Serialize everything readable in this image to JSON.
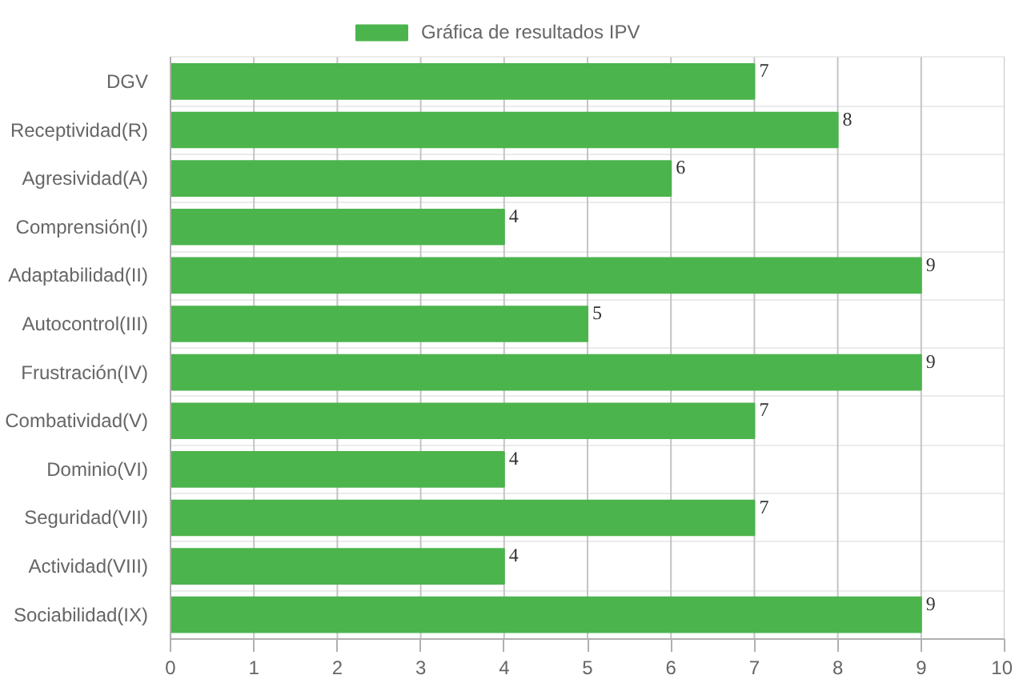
{
  "chart_data": {
    "type": "bar",
    "orientation": "horizontal",
    "categories": [
      "DGV",
      "Receptividad(R)",
      "Agresividad(A)",
      "Comprensión(I)",
      "Adaptabilidad(II)",
      "Autocontrol(III)",
      "Frustración(IV)",
      "Combatividad(V)",
      "Dominio(VI)",
      "Seguridad(VII)",
      "Actividad(VIII)",
      "Sociabilidad(IX)"
    ],
    "series": [
      {
        "name": "Gráfica de resultados IPV",
        "color": "#4cb44c",
        "values": [
          7,
          8,
          6,
          4,
          9,
          5,
          9,
          7,
          4,
          7,
          4,
          9
        ]
      }
    ],
    "xlim": [
      0,
      10
    ],
    "xticks": [
      0,
      1,
      2,
      3,
      4,
      5,
      6,
      7,
      8,
      9,
      10
    ],
    "grid": true,
    "legend": "top",
    "data_labels": true
  }
}
